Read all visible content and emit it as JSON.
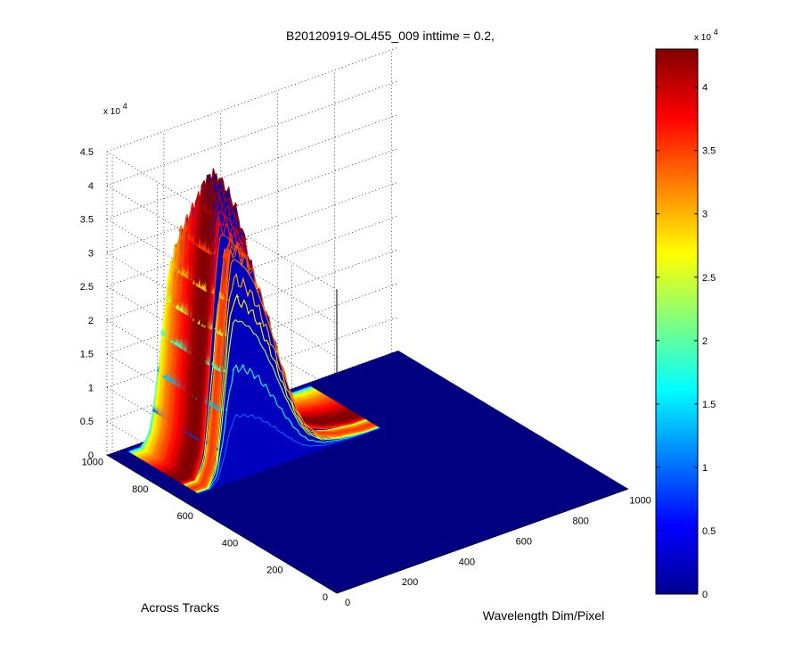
{
  "chart_data": {
    "type": "surface",
    "title": "B20120919-OL455_009 inttime = 0.2,",
    "xlabel": "Wavelength Dim/Pixel",
    "ylabel": "Across Tracks",
    "zlabel": "",
    "x_ticks": [
      "0",
      "200",
      "400",
      "600",
      "800",
      "1000"
    ],
    "y_ticks": [
      "0",
      "200",
      "400",
      "600",
      "800",
      "1000"
    ],
    "z_ticks": [
      "0",
      "0.5",
      "1",
      "1.5",
      "2",
      "2.5",
      "3",
      "3.5",
      "4",
      "4.5"
    ],
    "z_exponent_prefix": "x 10",
    "z_exponent": "4",
    "xlim": [
      0,
      1024
    ],
    "ylim": [
      0,
      1024
    ],
    "zlim": [
      0,
      45000
    ],
    "colormap": "jet",
    "colorbar": {
      "ticks": [
        "0",
        "0.5",
        "1",
        "1.5",
        "2",
        "2.5",
        "3",
        "3.5",
        "4"
      ],
      "range": [
        0,
        43000
      ],
      "exponent_prefix": "x 10",
      "exponent": "4"
    },
    "grid": true,
    "ridges": [
      {
        "y_start": 700,
        "y_end": 755,
        "peak": 35000
      },
      {
        "y_start": 760,
        "y_end": 1000,
        "peak": 43000
      }
    ],
    "x_profile": [
      [
        0,
        0
      ],
      [
        100,
        0
      ],
      [
        130,
        0.1
      ],
      [
        150,
        0.4
      ],
      [
        175,
        0.85
      ],
      [
        190,
        1.0
      ],
      [
        210,
        0.98
      ],
      [
        240,
        0.93
      ],
      [
        270,
        0.85
      ],
      [
        300,
        0.73
      ],
      [
        330,
        0.6
      ],
      [
        360,
        0.45
      ],
      [
        390,
        0.32
      ],
      [
        420,
        0.2
      ],
      [
        450,
        0.12
      ],
      [
        500,
        0.05
      ],
      [
        560,
        0.02
      ],
      [
        650,
        0
      ],
      [
        1024,
        0
      ]
    ],
    "y_profile": [
      [
        0,
        0
      ],
      [
        690,
        0
      ],
      [
        700,
        0.55
      ],
      [
        710,
        0.78
      ],
      [
        730,
        0.81
      ],
      [
        745,
        0.73
      ],
      [
        755,
        0.5
      ],
      [
        760,
        0.82
      ],
      [
        780,
        0.98
      ],
      [
        800,
        1.0
      ],
      [
        830,
        0.97
      ],
      [
        860,
        0.9
      ],
      [
        900,
        0.82
      ],
      [
        940,
        0.74
      ],
      [
        980,
        0.62
      ],
      [
        1000,
        0.4
      ],
      [
        1010,
        0
      ],
      [
        1024,
        0
      ]
    ]
  }
}
